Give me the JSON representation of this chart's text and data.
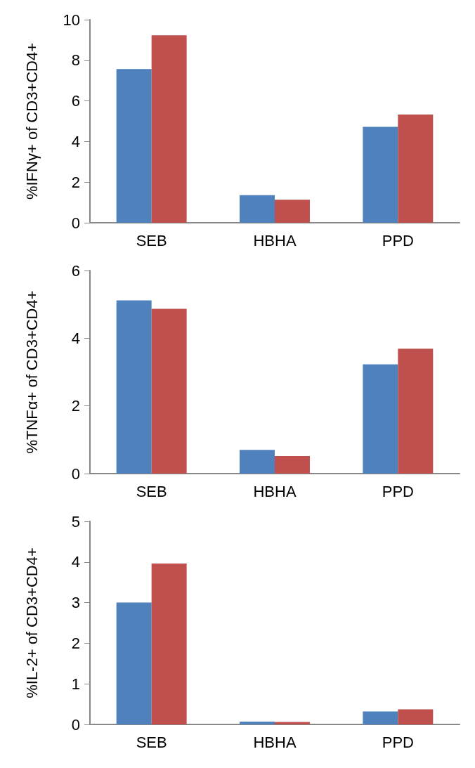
{
  "chart_data": [
    {
      "type": "bar",
      "ylabel": "%IFNγ+ of CD3+CD4+",
      "categories": [
        "SEB",
        "HBHA",
        "PPD"
      ],
      "series": [
        {
          "color": "#4f81bd",
          "values": [
            7.57,
            1.36,
            4.72
          ]
        },
        {
          "color": "#c0504d",
          "values": [
            9.23,
            1.13,
            5.33
          ]
        }
      ],
      "ylim": [
        0,
        10
      ],
      "yticks": [
        0,
        2,
        4,
        6,
        8,
        10
      ],
      "grid": false
    },
    {
      "type": "bar",
      "ylabel": "%TNFα+ of CD3+CD4+",
      "categories": [
        "SEB",
        "HBHA",
        "PPD"
      ],
      "series": [
        {
          "color": "#4f81bd",
          "values": [
            5.12,
            0.7,
            3.23
          ]
        },
        {
          "color": "#c0504d",
          "values": [
            4.87,
            0.52,
            3.69
          ]
        }
      ],
      "ylim": [
        0,
        6
      ],
      "yticks": [
        0,
        2,
        4,
        6
      ],
      "grid": false
    },
    {
      "type": "bar",
      "ylabel": "%IL-2+ of CD3+CD4+",
      "categories": [
        "SEB",
        "HBHA",
        "PPD"
      ],
      "series": [
        {
          "color": "#4f81bd",
          "values": [
            3.0,
            0.07,
            0.32
          ]
        },
        {
          "color": "#c0504d",
          "values": [
            3.96,
            0.06,
            0.37
          ]
        }
      ],
      "ylim": [
        0,
        5
      ],
      "yticks": [
        0,
        1,
        2,
        3,
        4,
        5
      ],
      "grid": false
    }
  ]
}
